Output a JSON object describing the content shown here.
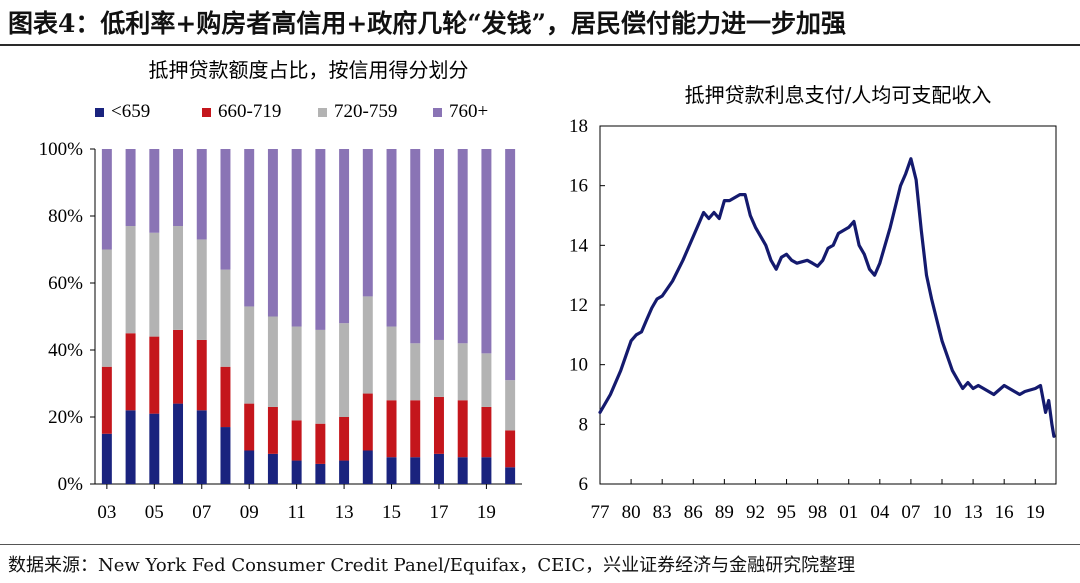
{
  "figure_title": "图表4：低利率+购房者高信用+政府几轮“发钱”，居民偿付能力进一步加强",
  "source_note": "数据来源：New York Fed Consumer Credit Panel/Equifax，CEIC，兴业证券经济与金融研究院整理",
  "chart_data": [
    {
      "type": "bar",
      "stacked": true,
      "title": "抵押贷款额度占比，按信用得分划分",
      "legend_position": "top",
      "ylim": [
        0,
        100
      ],
      "y_ticks": [
        "0%",
        "20%",
        "40%",
        "60%",
        "80%",
        "100%"
      ],
      "x_tick_labels": [
        "03",
        "05",
        "07",
        "09",
        "11",
        "13",
        "15",
        "17",
        "19"
      ],
      "categories": [
        "2003",
        "2004",
        "2005",
        "2006",
        "2007",
        "2008",
        "2009",
        "2010",
        "2011",
        "2012",
        "2013",
        "2014",
        "2015",
        "2016",
        "2017",
        "2018",
        "2019",
        "2020"
      ],
      "series": [
        {
          "name": "<659",
          "color": "#1a237e",
          "values": [
            15,
            22,
            21,
            24,
            22,
            17,
            10,
            9,
            7,
            6,
            7,
            10,
            8,
            8,
            9,
            8,
            8,
            5
          ]
        },
        {
          "name": "660-719",
          "color": "#c4161c",
          "values": [
            20,
            23,
            23,
            22,
            21,
            18,
            14,
            14,
            12,
            12,
            13,
            17,
            17,
            17,
            17,
            17,
            15,
            11
          ]
        },
        {
          "name": "720-759",
          "color": "#b3b3b3",
          "values": [
            35,
            32,
            31,
            31,
            30,
            29,
            29,
            27,
            28,
            28,
            28,
            29,
            22,
            17,
            17,
            17,
            16,
            15
          ]
        },
        {
          "name": "760+",
          "color": "#8a74b5",
          "values": [
            30,
            23,
            25,
            23,
            27,
            36,
            47,
            50,
            53,
            54,
            52,
            44,
            53,
            58,
            57,
            58,
            61,
            69
          ]
        }
      ]
    },
    {
      "type": "line",
      "title": "抵押贷款利息支付/人均可支配收入",
      "color": "#141a6e",
      "xlim": [
        1977,
        2021
      ],
      "ylim": [
        6,
        18
      ],
      "y_ticks": [
        6,
        8,
        10,
        12,
        14,
        16,
        18
      ],
      "x_tick_labels": [
        "77",
        "80",
        "83",
        "86",
        "89",
        "92",
        "95",
        "98",
        "01",
        "04",
        "07",
        "10",
        "13",
        "16",
        "19"
      ],
      "x": [
        1977.0,
        1978.0,
        1979.0,
        1979.5,
        1980.0,
        1980.5,
        1981.0,
        1981.5,
        1982.0,
        1982.5,
        1983.0,
        1984.0,
        1985.0,
        1986.0,
        1987.0,
        1987.5,
        1988.0,
        1988.5,
        1989.0,
        1989.5,
        1990.0,
        1990.5,
        1991.0,
        1991.5,
        1992.0,
        1993.0,
        1993.5,
        1994.0,
        1994.5,
        1995.0,
        1995.5,
        1996.0,
        1997.0,
        1997.5,
        1998.0,
        1998.5,
        1999.0,
        1999.5,
        2000.0,
        2001.0,
        2001.5,
        2002.0,
        2002.5,
        2003.0,
        2003.5,
        2004.0,
        2004.5,
        2005.0,
        2006.0,
        2006.5,
        2007.0,
        2007.5,
        2008.0,
        2008.5,
        2009.0,
        2009.5,
        2010.0,
        2010.5,
        2011.0,
        2011.5,
        2012.0,
        2012.5,
        2013.0,
        2013.5,
        2014.0,
        2015.0,
        2016.0,
        2017.0,
        2017.5,
        2018.0,
        2019.0,
        2019.5,
        2020.0,
        2020.3,
        2020.6,
        2020.8
      ],
      "y": [
        8.4,
        9.0,
        9.8,
        10.3,
        10.8,
        11.0,
        11.1,
        11.5,
        11.9,
        12.2,
        12.3,
        12.8,
        13.5,
        14.3,
        15.1,
        14.9,
        15.1,
        14.9,
        15.5,
        15.5,
        15.6,
        15.7,
        15.7,
        15.0,
        14.6,
        14.0,
        13.5,
        13.2,
        13.6,
        13.7,
        13.5,
        13.4,
        13.5,
        13.4,
        13.3,
        13.5,
        13.9,
        14.0,
        14.4,
        14.6,
        14.8,
        14.0,
        13.7,
        13.2,
        13.0,
        13.4,
        14.0,
        14.6,
        16.0,
        16.4,
        16.9,
        16.2,
        14.5,
        13.0,
        12.2,
        11.5,
        10.8,
        10.3,
        9.8,
        9.5,
        9.2,
        9.4,
        9.2,
        9.3,
        9.2,
        9.0,
        9.3,
        9.1,
        9.0,
        9.1,
        9.2,
        9.3,
        8.4,
        8.8,
        8.0,
        7.6
      ]
    }
  ]
}
